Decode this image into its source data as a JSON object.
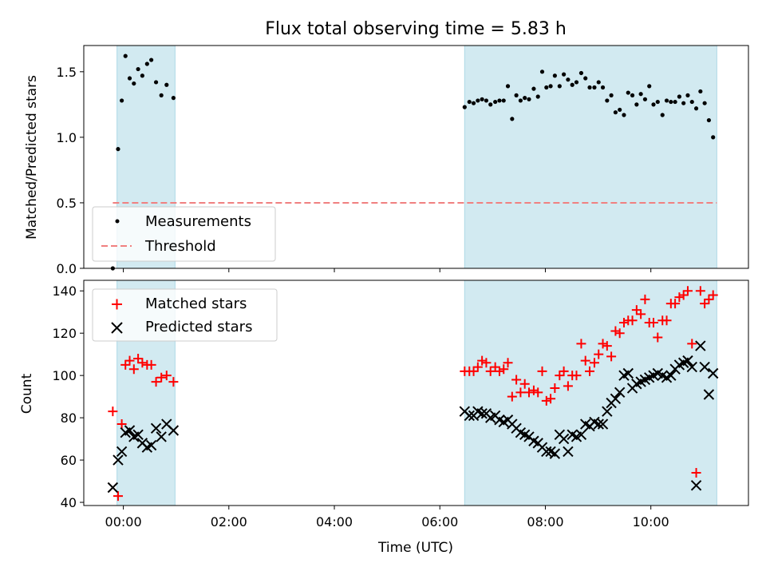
{
  "chart_data": {
    "title": "Flux total observing time = 5.83 h",
    "xlabel": "Time (UTC)",
    "x_ticks": [
      "00:00",
      "02:00",
      "04:00",
      "06:00",
      "08:00",
      "10:00"
    ],
    "x_range_hours": [
      -0.75,
      11.85
    ],
    "shaded_intervals_hours": [
      [
        -0.12,
        0.98
      ],
      [
        6.47,
        11.25
      ]
    ],
    "shade_color": "#add8e6",
    "panels": [
      {
        "type": "scatter",
        "ylabel": "Matched/Predicted stars",
        "ylim": [
          0,
          1.7
        ],
        "y_ticks": [
          "0.0",
          "0.5",
          "1.0",
          "1.5"
        ],
        "legend": {
          "position": "lower-left",
          "entries": [
            "Measurements",
            "Threshold"
          ]
        },
        "series": [
          {
            "name": "Measurements",
            "marker": "dot",
            "color": "#000000",
            "x": [
              -0.2,
              -0.1,
              -0.03,
              0.04,
              0.12,
              0.2,
              0.28,
              0.36,
              0.45,
              0.53,
              0.62,
              0.72,
              0.82,
              0.95,
              6.47,
              6.56,
              6.64,
              6.72,
              6.8,
              6.88,
              6.96,
              7.05,
              7.13,
              7.21,
              7.29,
              7.37,
              7.45,
              7.53,
              7.61,
              7.69,
              7.78,
              7.86,
              7.94,
              8.02,
              8.1,
              8.18,
              8.27,
              8.35,
              8.43,
              8.51,
              8.59,
              8.68,
              8.76,
              8.84,
              8.93,
              9.01,
              9.09,
              9.17,
              9.25,
              9.33,
              9.41,
              9.49,
              9.57,
              9.65,
              9.73,
              9.81,
              9.89,
              9.97,
              10.05,
              10.13,
              10.22,
              10.3,
              10.38,
              10.46,
              10.54,
              10.62,
              10.7,
              10.78,
              10.86,
              10.94,
              11.02,
              11.1,
              11.18
            ],
            "y": [
              0.0,
              0.91,
              1.28,
              1.62,
              1.45,
              1.41,
              1.52,
              1.47,
              1.56,
              1.59,
              1.42,
              1.32,
              1.4,
              1.3,
              1.23,
              1.27,
              1.26,
              1.28,
              1.29,
              1.28,
              1.25,
              1.27,
              1.28,
              1.28,
              1.39,
              1.14,
              1.32,
              1.28,
              1.3,
              1.29,
              1.37,
              1.31,
              1.5,
              1.38,
              1.39,
              1.47,
              1.39,
              1.48,
              1.44,
              1.4,
              1.42,
              1.49,
              1.45,
              1.38,
              1.38,
              1.42,
              1.38,
              1.28,
              1.32,
              1.19,
              1.21,
              1.17,
              1.34,
              1.32,
              1.25,
              1.33,
              1.29,
              1.39,
              1.25,
              1.27,
              1.17,
              1.28,
              1.27,
              1.27,
              1.31,
              1.26,
              1.32,
              1.27,
              1.22,
              1.35,
              1.26,
              1.13,
              1.0
            ]
          },
          {
            "name": "Threshold",
            "marker": "dashed-line",
            "color": "#f08080",
            "x": [
              -0.2,
              11.25
            ],
            "y": [
              0.5,
              0.5
            ]
          }
        ]
      },
      {
        "type": "scatter",
        "ylabel": "Count",
        "ylim": [
          38.5,
          145
        ],
        "y_ticks": [
          "40",
          "60",
          "80",
          "100",
          "120",
          "140"
        ],
        "legend": {
          "position": "upper-left",
          "entries": [
            "Matched stars",
            "Predicted stars"
          ]
        },
        "series": [
          {
            "name": "Matched stars",
            "marker": "plus",
            "color": "#ff0000",
            "x": [
              -0.2,
              -0.1,
              -0.03,
              0.04,
              0.12,
              0.2,
              0.28,
              0.36,
              0.45,
              0.53,
              0.62,
              0.72,
              0.82,
              0.95,
              6.47,
              6.56,
              6.64,
              6.72,
              6.8,
              6.88,
              6.96,
              7.05,
              7.13,
              7.21,
              7.29,
              7.37,
              7.45,
              7.53,
              7.61,
              7.69,
              7.78,
              7.86,
              7.94,
              8.02,
              8.1,
              8.18,
              8.27,
              8.35,
              8.43,
              8.51,
              8.59,
              8.68,
              8.76,
              8.84,
              8.93,
              9.01,
              9.09,
              9.17,
              9.25,
              9.33,
              9.41,
              9.49,
              9.57,
              9.65,
              9.73,
              9.81,
              9.89,
              9.97,
              10.05,
              10.13,
              10.22,
              10.3,
              10.38,
              10.46,
              10.54,
              10.62,
              10.7,
              10.78,
              10.86,
              10.94,
              11.02,
              11.1,
              11.18
            ],
            "y": [
              83,
              43,
              77,
              105,
              107,
              103,
              108,
              106,
              105,
              105,
              97,
              99,
              100,
              97,
              102,
              102,
              102,
              104,
              107,
              106,
              102,
              104,
              102,
              103,
              106,
              90,
              98,
              92,
              96,
              92,
              93,
              92,
              102,
              88,
              89,
              94,
              100,
              102,
              95,
              100,
              100,
              115,
              107,
              102,
              106,
              110,
              115,
              114,
              109,
              121,
              120,
              125,
              126,
              126,
              131,
              129,
              136,
              125,
              125,
              118,
              126,
              126,
              134,
              134,
              137,
              138,
              140,
              115,
              54,
              140,
              134,
              136,
              138
            ]
          },
          {
            "name": "Predicted stars",
            "marker": "x",
            "color": "#000000",
            "x": [
              -0.2,
              -0.1,
              -0.03,
              0.04,
              0.12,
              0.2,
              0.28,
              0.36,
              0.45,
              0.53,
              0.62,
              0.72,
              0.82,
              0.95,
              6.47,
              6.56,
              6.64,
              6.72,
              6.8,
              6.88,
              6.96,
              7.05,
              7.13,
              7.21,
              7.29,
              7.37,
              7.45,
              7.53,
              7.61,
              7.69,
              7.78,
              7.86,
              7.94,
              8.02,
              8.1,
              8.18,
              8.27,
              8.35,
              8.43,
              8.51,
              8.59,
              8.68,
              8.76,
              8.84,
              8.93,
              9.01,
              9.09,
              9.17,
              9.25,
              9.33,
              9.41,
              9.49,
              9.57,
              9.65,
              9.73,
              9.81,
              9.89,
              9.97,
              10.05,
              10.13,
              10.22,
              10.3,
              10.38,
              10.46,
              10.54,
              10.62,
              10.7,
              10.78,
              10.86,
              10.94,
              11.02,
              11.1,
              11.18
            ],
            "y": [
              47,
              60,
              64,
              73,
              74,
              71,
              72,
              68,
              66,
              67,
              75,
              71,
              77,
              74,
              83,
              81,
              81,
              83,
              82,
              82,
              80,
              81,
              79,
              78,
              79,
              77,
              75,
              73,
              72,
              71,
              69,
              68,
              66,
              64,
              64,
              63,
              72,
              70,
              64,
              72,
              71,
              72,
              77,
              76,
              78,
              77,
              77,
              83,
              87,
              89,
              92,
              100,
              101,
              94,
              96,
              97,
              98,
              99,
              100,
              101,
              100,
              99,
              100,
              103,
              105,
              106,
              107,
              104,
              48,
              114,
              104,
              91,
              101
            ]
          }
        ]
      }
    ]
  }
}
